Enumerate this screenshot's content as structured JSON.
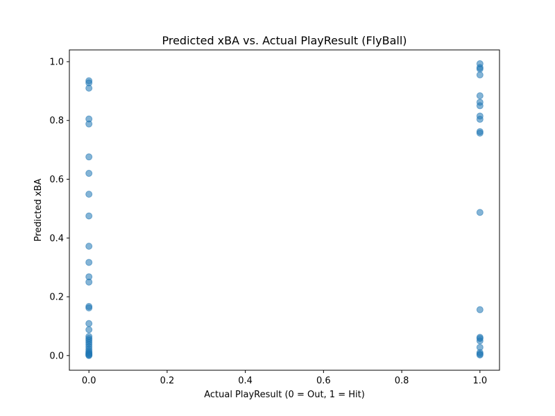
{
  "chart_data": {
    "type": "scatter",
    "title": "Predicted xBA vs. Actual PlayResult (FlyBall)",
    "xlabel": "Actual PlayResult (0 = Out, 1 = Hit)",
    "ylabel": "Predicted xBA",
    "xlim": [
      -0.05,
      1.05
    ],
    "ylim": [
      -0.05,
      1.04
    ],
    "xticks": [
      "0.0",
      "0.2",
      "0.4",
      "0.6",
      "0.8",
      "1.0"
    ],
    "yticks": [
      "0.0",
      "0.2",
      "0.4",
      "0.6",
      "0.8",
      "1.0"
    ],
    "grid": false,
    "legend": "none",
    "marker_color": "#1f77b4",
    "marker_alpha": 0.55,
    "points": [
      {
        "x": 0,
        "y": 0.935
      },
      {
        "x": 0,
        "y": 0.928
      },
      {
        "x": 0,
        "y": 0.91
      },
      {
        "x": 0,
        "y": 0.805
      },
      {
        "x": 0,
        "y": 0.788
      },
      {
        "x": 0,
        "y": 0.676
      },
      {
        "x": 0,
        "y": 0.62
      },
      {
        "x": 0,
        "y": 0.549
      },
      {
        "x": 0,
        "y": 0.475
      },
      {
        "x": 0,
        "y": 0.372
      },
      {
        "x": 0,
        "y": 0.317
      },
      {
        "x": 0,
        "y": 0.268
      },
      {
        "x": 0,
        "y": 0.25
      },
      {
        "x": 0,
        "y": 0.167
      },
      {
        "x": 0,
        "y": 0.162
      },
      {
        "x": 0,
        "y": 0.109
      },
      {
        "x": 0,
        "y": 0.088
      },
      {
        "x": 0,
        "y": 0.065
      },
      {
        "x": 0,
        "y": 0.058
      },
      {
        "x": 0,
        "y": 0.052
      },
      {
        "x": 0,
        "y": 0.045
      },
      {
        "x": 0,
        "y": 0.038
      },
      {
        "x": 0,
        "y": 0.03
      },
      {
        "x": 0,
        "y": 0.022
      },
      {
        "x": 0,
        "y": 0.015
      },
      {
        "x": 0,
        "y": 0.01
      },
      {
        "x": 0,
        "y": 0.007
      },
      {
        "x": 0,
        "y": 0.004
      },
      {
        "x": 0,
        "y": 0.002
      },
      {
        "x": 0,
        "y": 0.0
      },
      {
        "x": 1,
        "y": 0.993
      },
      {
        "x": 1,
        "y": 0.98
      },
      {
        "x": 1,
        "y": 0.975
      },
      {
        "x": 1,
        "y": 0.955
      },
      {
        "x": 1,
        "y": 0.884
      },
      {
        "x": 1,
        "y": 0.862
      },
      {
        "x": 1,
        "y": 0.85
      },
      {
        "x": 1,
        "y": 0.815
      },
      {
        "x": 1,
        "y": 0.804
      },
      {
        "x": 1,
        "y": 0.762
      },
      {
        "x": 1,
        "y": 0.757
      },
      {
        "x": 1,
        "y": 0.487
      },
      {
        "x": 1,
        "y": 0.156
      },
      {
        "x": 1,
        "y": 0.062
      },
      {
        "x": 1,
        "y": 0.058
      },
      {
        "x": 1,
        "y": 0.05
      },
      {
        "x": 1,
        "y": 0.028
      },
      {
        "x": 1,
        "y": 0.01
      },
      {
        "x": 1,
        "y": 0.005
      },
      {
        "x": 1,
        "y": 0.002
      }
    ]
  }
}
